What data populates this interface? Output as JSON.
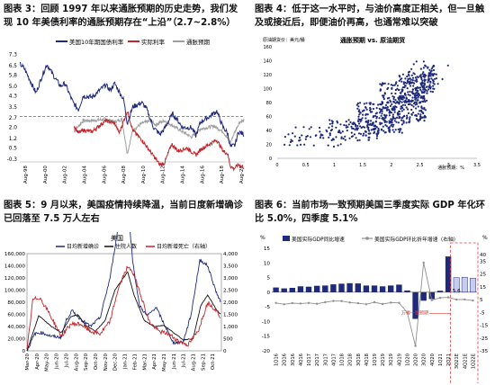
{
  "captions": {
    "c3": "图表 3：回顾 1997 年以来通胀预期的历史走势，我们发现 10 年美债利率的通胀预期存在“上沿”（2.7~2.8%）",
    "c4": "图表 4：低于这一水平时，与油价高度正相关，但一旦触及或接近后，即便油价再高，也通常难以突破",
    "c5": "图表 5：9 月以来，美国疫情持续降温，当前日度新增确诊已回落至 7.5 万人左右",
    "c6": "图表 6：当前市场一致预期美国三季度实际 GDP 年化环比 5.0%，四季度 5.1%"
  },
  "colors": {
    "navy": "#1f2a7a",
    "red": "#c0272d",
    "gray": "#a0a0a0",
    "black": "#111111",
    "dash_red": "#e03b3b"
  },
  "chart_data": [
    {
      "id": "chart3",
      "type": "line",
      "legend": [
        "美国10年期国债利率",
        "实际利率",
        "通胀预期"
      ],
      "y_ticks": [
        "-0.3",
        "0.5",
        "1.2",
        "2.0",
        "2.7",
        "3.5",
        "4.3",
        "5.0",
        "5.8",
        "6.5",
        "7.3"
      ],
      "ylim": [
        -0.5,
        7.6
      ],
      "x_ticks": [
        "Aug-98",
        "Aug-00",
        "Aug-02",
        "Aug-04",
        "Aug-06",
        "Aug-08",
        "Aug-10",
        "Aug-12",
        "Aug-14",
        "Aug-16",
        "Aug-18",
        "Aug-20"
      ],
      "xlim": [
        1997.0,
        2021.9
      ],
      "ref_line": 2.8,
      "series": [
        {
          "name": "美国10年期国债利率",
          "x": [
            1997.0,
            1997.5,
            1998.0,
            1998.8,
            1999.5,
            2000.0,
            2000.6,
            2001.5,
            2002.0,
            2002.9,
            2003.5,
            2004.0,
            2005.0,
            2006.5,
            2007.0,
            2007.5,
            2008.5,
            2008.9,
            2009.5,
            2010.5,
            2011.0,
            2011.8,
            2012.5,
            2013.0,
            2013.9,
            2014.5,
            2015.0,
            2016.0,
            2016.5,
            2017.0,
            2018.0,
            2018.8,
            2019.5,
            2020.0,
            2020.3,
            2020.8,
            2021.2,
            2021.8
          ],
          "values": [
            6.6,
            6.3,
            5.6,
            4.5,
            5.8,
            6.6,
            5.9,
            5.0,
            5.2,
            3.8,
            3.3,
            4.3,
            4.2,
            5.1,
            4.7,
            5.2,
            4.0,
            2.3,
            3.5,
            3.8,
            3.4,
            2.0,
            1.5,
            1.9,
            3.0,
            2.5,
            2.0,
            2.0,
            1.4,
            2.4,
            2.8,
            3.2,
            2.0,
            1.6,
            0.6,
            0.7,
            1.7,
            1.5
          ]
        },
        {
          "name": "实际利率",
          "x": [
            2003.0,
            2003.5,
            2004.0,
            2005.0,
            2006.5,
            2007.5,
            2008.0,
            2008.9,
            2009.5,
            2010.5,
            2011.5,
            2012.5,
            2013.0,
            2013.8,
            2014.5,
            2015.5,
            2016.5,
            2017.0,
            2018.8,
            2019.5,
            2020.0,
            2020.3,
            2020.7,
            2021.2,
            2021.8
          ],
          "values": [
            2.1,
            1.6,
            1.8,
            1.7,
            2.5,
            2.3,
            1.6,
            3.2,
            1.8,
            1.1,
            0.2,
            -0.7,
            -0.6,
            0.8,
            0.3,
            0.5,
            0.0,
            0.4,
            1.1,
            0.3,
            0.1,
            -0.8,
            -1.0,
            -0.7,
            -0.9
          ]
        },
        {
          "name": "通胀预期",
          "x": [
            2003.0,
            2004.0,
            2005.0,
            2006.5,
            2007.5,
            2008.3,
            2008.9,
            2009.5,
            2010.5,
            2011.5,
            2012.0,
            2013.0,
            2014.0,
            2015.0,
            2016.0,
            2017.0,
            2018.5,
            2019.5,
            2020.3,
            2020.8,
            2021.3,
            2021.8
          ],
          "values": [
            1.7,
            2.5,
            2.5,
            2.6,
            2.4,
            2.6,
            0.1,
            1.8,
            2.3,
            2.5,
            2.2,
            2.5,
            2.1,
            1.7,
            1.3,
            1.9,
            2.1,
            1.7,
            0.9,
            1.7,
            2.4,
            2.5
          ]
        }
      ]
    },
    {
      "id": "chart4",
      "type": "scatter",
      "title": "通胀预期 vs. 原油期货",
      "y_title": "原油期货价：美元/桶",
      "x_title": "通胀预期：%",
      "y_ticks": [
        "0",
        "20",
        "40",
        "60",
        "80",
        "100",
        "120",
        "140",
        "160"
      ],
      "ylim": [
        0,
        160
      ],
      "x_ticks": [
        "0",
        "0.5",
        "1",
        "1.5",
        "2",
        "2.5",
        "3",
        "3.5"
      ],
      "xlim": [
        0,
        3.5
      ],
      "clusters": [
        {
          "x": [
            0.1,
            1.2
          ],
          "y": [
            15,
            45
          ],
          "n": 45
        },
        {
          "x": [
            0.9,
            1.8
          ],
          "y": [
            25,
            55
          ],
          "n": 90
        },
        {
          "x": [
            1.4,
            2.2
          ],
          "y": [
            35,
            80
          ],
          "n": 180
        },
        {
          "x": [
            1.8,
            2.6
          ],
          "y": [
            50,
            110
          ],
          "n": 240
        },
        {
          "x": [
            2.1,
            2.75
          ],
          "y": [
            80,
            125
          ],
          "n": 140
        },
        {
          "x": [
            2.3,
            2.8
          ],
          "y": [
            95,
            140
          ],
          "n": 45
        },
        {
          "x": [
            2.5,
            3.0
          ],
          "y": [
            105,
            135
          ],
          "n": 20
        }
      ]
    },
    {
      "id": "chart5",
      "type": "line",
      "title": "美国",
      "legend": [
        "日均新增确诊",
        "住院人数",
        "日均新增死亡（右轴）"
      ],
      "y_ticks": [
        "0",
        "20,000",
        "40,000",
        "60,000",
        "80,000",
        "100,000",
        "120,000",
        "140,000",
        "160,000"
      ],
      "ylim": [
        0,
        160000
      ],
      "y2_ticks": [
        "0",
        "500",
        "1,000",
        "1,500",
        "2,000",
        "2,500",
        "3,000",
        "3,500",
        "4,000"
      ],
      "y2lim": [
        0,
        4000
      ],
      "x_ticks": [
        "Mar-20",
        "Apr-20",
        "May-20",
        "Jun-20",
        "Jul-20",
        "Aug-20",
        "Sep-20",
        "Oct-20",
        "Nov-20",
        "Dec-20",
        "Jan-21",
        "Feb-21",
        "Mar-21",
        "Apr-21",
        "May-21",
        "Jun-21",
        "Jul-21",
        "Aug-21",
        "Sep-21",
        "Oct-21"
      ],
      "xlim": [
        0,
        19.9
      ],
      "series": [
        {
          "name": "日均新增确诊",
          "x": [
            0,
            0.8,
            1.5,
            2.5,
            3.5,
            4.0,
            4.6,
            5.5,
            6.5,
            7.5,
            8.5,
            9.3,
            10.3,
            10.8,
            11.5,
            12.3,
            13.2,
            14.0,
            15.0,
            16.0,
            16.8,
            17.7,
            18.5,
            19.3,
            19.8
          ],
          "values": [
            0,
            28000,
            30000,
            24000,
            22000,
            50000,
            66000,
            52000,
            40000,
            55000,
            120000,
            200000,
            250000,
            150000,
            75000,
            57000,
            72000,
            45000,
            13000,
            15000,
            60000,
            150000,
            140000,
            100000,
            80000
          ]
        },
        {
          "name": "住院人数",
          "x": [
            0,
            1.2,
            2.5,
            3.5,
            4.5,
            5.2,
            6.0,
            7.0,
            8.0,
            9.0,
            10.3,
            11.0,
            12.0,
            13.0,
            14.0,
            15.0,
            16.0,
            17.0,
            17.8,
            18.5,
            19.3,
            19.8
          ],
          "values": [
            0,
            58000,
            40000,
            30000,
            56000,
            60000,
            42000,
            32000,
            50000,
            100000,
            130000,
            90000,
            50000,
            40000,
            42000,
            30000,
            18000,
            20000,
            75000,
            92000,
            70000,
            60000
          ]
        },
        {
          "name": "日均新增死亡（右轴）",
          "x": [
            0,
            0.6,
            1.3,
            2.2,
            3.5,
            4.5,
            5.5,
            6.5,
            7.5,
            8.5,
            9.3,
            10.2,
            10.7,
            11.5,
            12.5,
            13.5,
            14.5,
            15.5,
            16.5,
            17.5,
            18.5,
            19.3,
            19.8
          ],
          "values": [
            0,
            2100,
            2200,
            1600,
            600,
            1100,
            1100,
            800,
            700,
            1200,
            2500,
            3400,
            3350,
            2500,
            1200,
            800,
            700,
            400,
            250,
            800,
            2000,
            1700,
            1400
          ]
        }
      ]
    },
    {
      "id": "chart6",
      "type": "bar",
      "unit_left": "%",
      "unit_right": "%",
      "legend": [
        "美国实际GDP同比增速",
        "美国实际GDP环比折年增速（右轴）"
      ],
      "categories": [
        "1Q16",
        "2Q16",
        "3Q16",
        "4Q16",
        "1Q17",
        "2Q17",
        "3Q17",
        "4Q17",
        "1Q18",
        "2Q18",
        "3Q18",
        "4Q18",
        "1Q19",
        "2Q19",
        "3Q19",
        "4Q19",
        "1Q20",
        "2Q20",
        "3Q20",
        "4Q20",
        "1Q21",
        "2Q21",
        "3Q21E",
        "4Q21E",
        "1Q22E"
      ],
      "y_ticks": [
        "15",
        "10",
        "5",
        "0",
        "-5",
        "-10",
        "-15",
        "-20"
      ],
      "ylim": [
        -20,
        15
      ],
      "y2_ticks": [
        "40",
        "35",
        "25",
        "15",
        "5",
        "-5",
        "-15",
        "-25",
        "-35"
      ],
      "y2lim": [
        -35,
        45
      ],
      "values": [
        1.6,
        1.3,
        1.5,
        2.0,
        1.9,
        2.2,
        2.3,
        2.7,
        2.9,
        3.1,
        3.0,
        2.3,
        2.3,
        2.0,
        2.3,
        2.6,
        0.6,
        -9.1,
        -2.9,
        -2.3,
        0.5,
        12.2,
        5.0,
        5.1,
        4.8
      ],
      "values_right": [
        2.3,
        1.3,
        2.2,
        1.9,
        2.3,
        1.7,
        2.9,
        3.9,
        3.8,
        2.7,
        2.1,
        1.3,
        2.9,
        1.5,
        2.6,
        2.4,
        -5.1,
        -31.2,
        33.8,
        4.5,
        6.3,
        6.7,
        5.0,
        5.1,
        4.2
      ],
      "forecast_from_index": 22,
      "data_label": "5.6",
      "annotation": "万得一致预期"
    }
  ]
}
